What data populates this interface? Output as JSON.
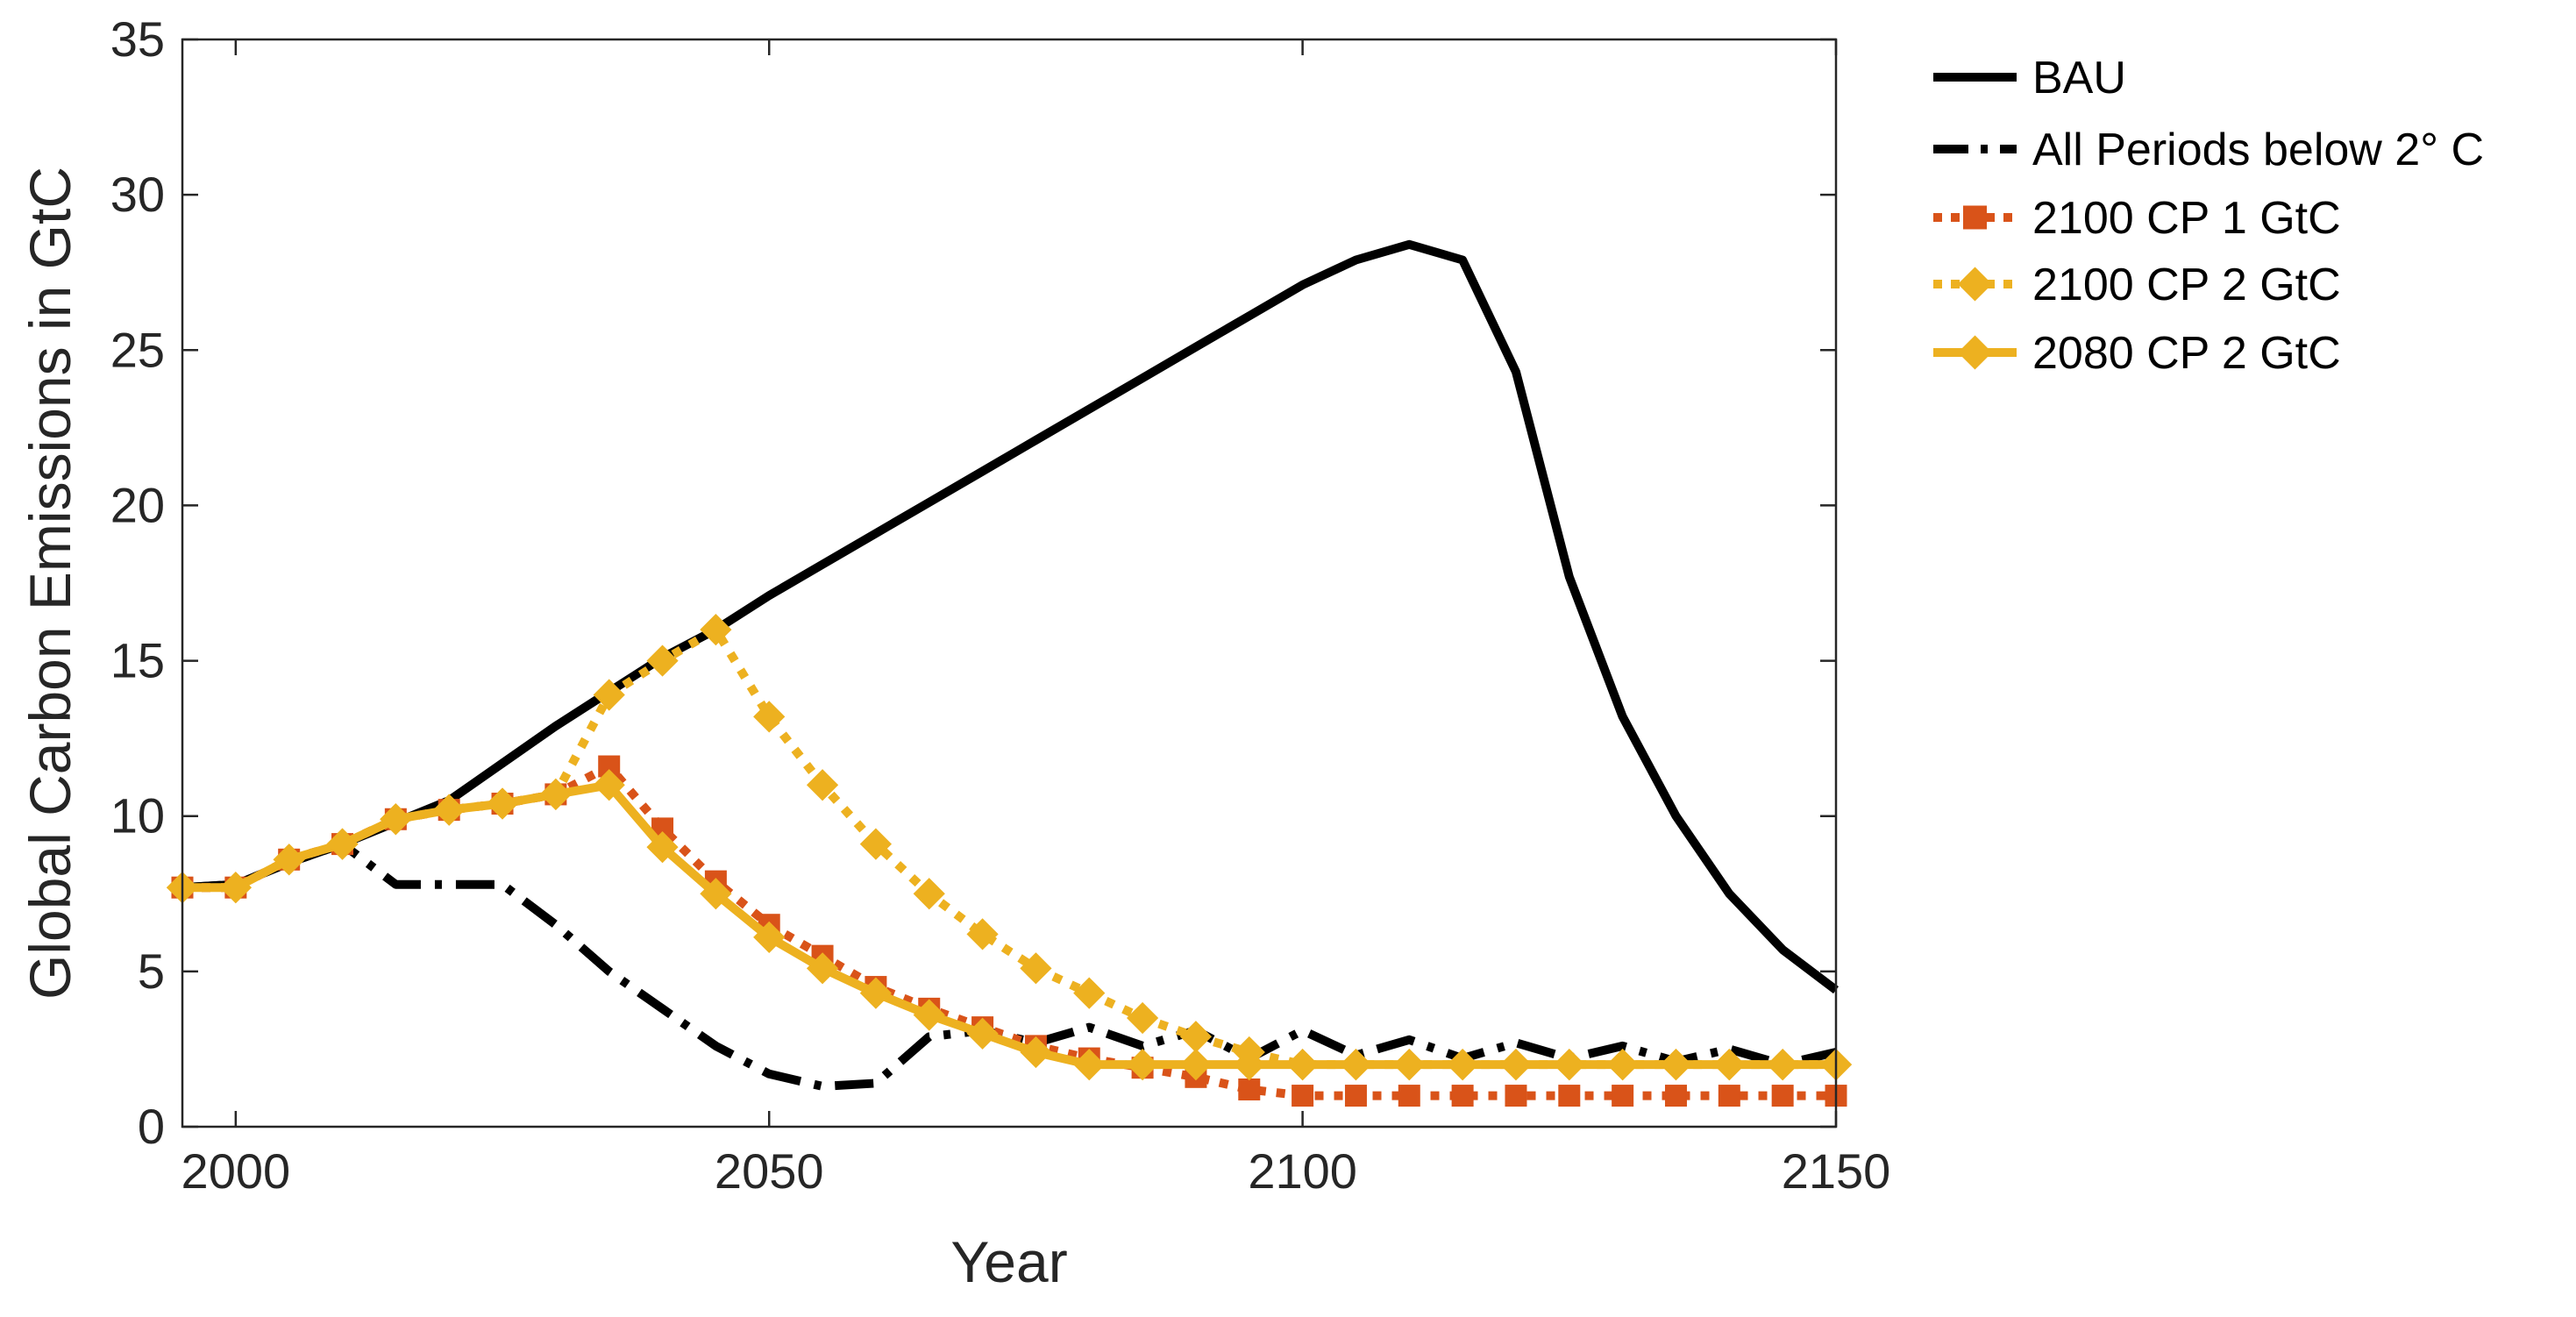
{
  "chart_data": {
    "type": "line",
    "title": "",
    "xlabel": "Year",
    "ylabel": "Global Carbon Emissions in GtC",
    "xlim": [
      1995,
      2150
    ],
    "ylim": [
      0,
      35
    ],
    "xticks": [
      2000,
      2050,
      2100,
      2150
    ],
    "yticks": [
      0,
      5,
      10,
      15,
      20,
      25,
      30,
      35
    ],
    "grid": false,
    "legend_position": "outside-right-top",
    "series": [
      {
        "name": "BAU",
        "color": "#000000",
        "style": "solid",
        "marker": "none",
        "x": [
          1995,
          2000,
          2005,
          2010,
          2015,
          2020,
          2025,
          2030,
          2035,
          2040,
          2045,
          2050,
          2055,
          2060,
          2065,
          2070,
          2075,
          2080,
          2085,
          2090,
          2095,
          2100,
          2105,
          2110,
          2115,
          2120,
          2125,
          2130,
          2135,
          2140,
          2145,
          2150
        ],
        "y": [
          7.7,
          7.8,
          8.5,
          9.1,
          9.8,
          10.5,
          11.7,
          12.9,
          14.0,
          15.1,
          16.0,
          17.1,
          18.1,
          19.1,
          20.1,
          21.1,
          22.1,
          23.1,
          24.1,
          25.1,
          26.1,
          27.1,
          27.9,
          28.4,
          27.9,
          24.3,
          17.7,
          13.2,
          10.0,
          7.5,
          5.7,
          4.4
        ]
      },
      {
        "name": "All Periods below 2° C",
        "color": "#000000",
        "style": "dashdot",
        "marker": "none",
        "x": [
          1995,
          2000,
          2005,
          2010,
          2015,
          2020,
          2025,
          2030,
          2035,
          2040,
          2045,
          2050,
          2055,
          2060,
          2065,
          2070,
          2075,
          2080,
          2085,
          2090,
          2095,
          2100,
          2105,
          2110,
          2115,
          2120,
          2125,
          2130,
          2135,
          2140,
          2145,
          2150
        ],
        "y": [
          7.7,
          7.8,
          8.5,
          9.1,
          7.8,
          7.8,
          7.8,
          6.5,
          5.0,
          3.8,
          2.6,
          1.7,
          1.3,
          1.4,
          2.9,
          3.1,
          2.7,
          3.2,
          2.6,
          3.1,
          2.2,
          3.1,
          2.3,
          2.8,
          2.2,
          2.7,
          2.2,
          2.6,
          2.1,
          2.5,
          2.0,
          2.4
        ]
      },
      {
        "name": "2100 CP 1 GtC",
        "color": "#D95319",
        "style": "dotted",
        "marker": "square",
        "x": [
          1995,
          2000,
          2005,
          2010,
          2015,
          2020,
          2025,
          2030,
          2035,
          2040,
          2045,
          2050,
          2055,
          2060,
          2065,
          2070,
          2075,
          2080,
          2085,
          2090,
          2095,
          2100,
          2105,
          2110,
          2115,
          2120,
          2125,
          2130,
          2135,
          2140,
          2145,
          2150
        ],
        "y": [
          7.7,
          7.7,
          8.6,
          9.1,
          9.9,
          10.2,
          10.4,
          10.7,
          11.6,
          9.6,
          7.9,
          6.5,
          5.5,
          4.5,
          3.8,
          3.2,
          2.6,
          2.2,
          1.9,
          1.6,
          1.2,
          1.0,
          1.0,
          1.0,
          1.0,
          1.0,
          1.0,
          1.0,
          1.0,
          1.0,
          1.0,
          1.0
        ]
      },
      {
        "name": "2100 CP 2 GtC",
        "color": "#EDB120",
        "style": "dotted",
        "marker": "diamond",
        "x": [
          1995,
          2000,
          2005,
          2010,
          2015,
          2020,
          2025,
          2030,
          2035,
          2040,
          2045,
          2050,
          2055,
          2060,
          2065,
          2070,
          2075,
          2080,
          2085,
          2090,
          2095,
          2100,
          2105,
          2110,
          2115,
          2120,
          2125,
          2130,
          2135,
          2140,
          2145,
          2150
        ],
        "y": [
          7.7,
          7.7,
          8.6,
          9.1,
          9.9,
          10.2,
          10.4,
          10.7,
          13.9,
          15.0,
          16.0,
          13.2,
          11.0,
          9.1,
          7.5,
          6.2,
          5.1,
          4.3,
          3.5,
          2.9,
          2.4,
          2.0,
          2.0,
          2.0,
          2.0,
          2.0,
          2.0,
          2.0,
          2.0,
          2.0,
          2.0,
          2.0
        ]
      },
      {
        "name": "2080 CP 2 GtC",
        "color": "#EDB120",
        "style": "solid",
        "marker": "diamond",
        "x": [
          1995,
          2000,
          2005,
          2010,
          2015,
          2020,
          2025,
          2030,
          2035,
          2040,
          2045,
          2050,
          2055,
          2060,
          2065,
          2070,
          2075,
          2080,
          2085,
          2090,
          2095,
          2100,
          2105,
          2110,
          2115,
          2120,
          2125,
          2130,
          2135,
          2140,
          2145,
          2150
        ],
        "y": [
          7.7,
          7.7,
          8.6,
          9.1,
          9.9,
          10.2,
          10.4,
          10.7,
          11.0,
          9.0,
          7.5,
          6.1,
          5.1,
          4.3,
          3.6,
          3.0,
          2.4,
          2.0,
          2.0,
          2.0,
          2.0,
          2.0,
          2.0,
          2.0,
          2.0,
          2.0,
          2.0,
          2.0,
          2.0,
          2.0,
          2.0,
          2.0
        ]
      }
    ]
  }
}
